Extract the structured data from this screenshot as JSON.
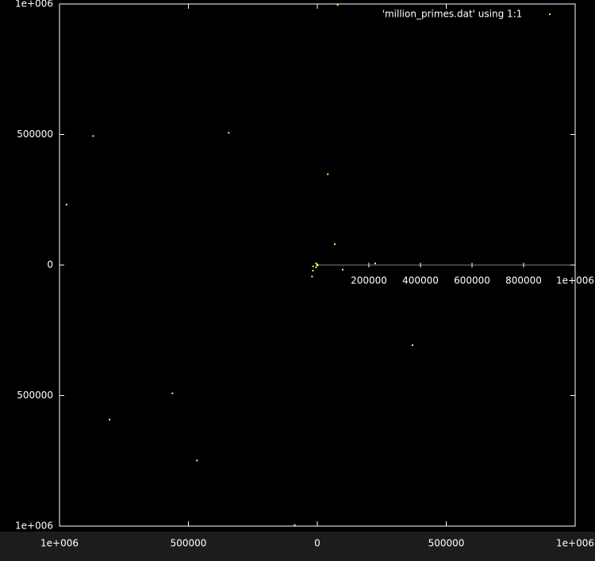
{
  "chart_data": {
    "type": "polar",
    "legend_label": "'million_primes.dat' using 1:1",
    "color": "#ffff4d",
    "values": [
      2,
      3,
      5,
      7,
      11,
      13,
      17,
      19,
      23,
      29,
      31,
      37,
      41,
      43,
      47,
      53,
      59,
      61,
      67,
      71,
      73,
      79,
      83,
      89,
      97,
      101,
      103,
      107,
      109,
      113,
      127,
      131,
      137,
      139,
      149,
      151,
      157,
      163,
      167,
      173,
      179,
      181,
      191,
      193,
      197,
      199,
      211,
      223,
      227,
      229,
      233,
      239,
      241,
      251,
      257,
      263,
      269,
      271,
      277,
      281,
      283,
      293,
      541,
      1009,
      7919,
      10007,
      17389,
      27449,
      48611,
      100003,
      104729,
      224737,
      350377,
      479909,
      611953,
      746773,
      882377,
      999953,
      999959,
      999961,
      999979,
      999983
    ],
    "xlim": [
      -1000000,
      1000000
    ],
    "ylim": [
      -1000000,
      1000000
    ],
    "xticks": [
      {
        "value": -1000000,
        "label": "1e+006"
      },
      {
        "value": -500000,
        "label": "500000"
      },
      0,
      500000,
      {
        "value": 1000000,
        "label": "1e+006"
      }
    ],
    "yticks": [
      {
        "value": -1000000,
        "label": "1e+006"
      },
      {
        "value": -500000,
        "label": "500000"
      },
      0,
      500000,
      {
        "value": 1000000,
        "label": "1e+006"
      }
    ],
    "rticks": [
      200000,
      400000,
      600000,
      800000,
      {
        "value": 1000000,
        "label": "1e+006"
      }
    ]
  }
}
